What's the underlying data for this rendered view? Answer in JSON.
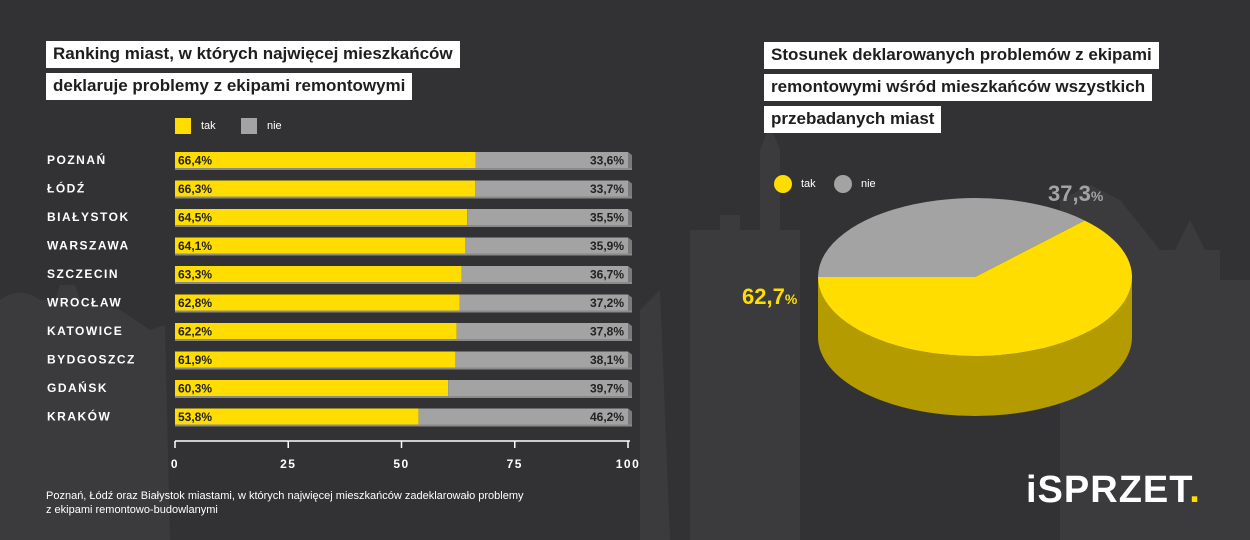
{
  "colors": {
    "yes": "#ffdd00",
    "no": "#a3a3a3",
    "pie_yes_side": "#b39b00",
    "pie_no_side": "#7a7a7a",
    "background": "#323234"
  },
  "left_title": {
    "line1": "Ranking miast, w których najwięcej mieszkańców",
    "line2": "deklaruje problemy z ekipami remontowymi"
  },
  "right_title": {
    "line1": "Stosunek deklarowanych problemów z ekipami",
    "line2": "remontowymi wśród mieszkańców wszystkich",
    "line3": "przebadanych miast"
  },
  "legend": {
    "yes": "tak",
    "no": "nie"
  },
  "note": {
    "line1": "Poznań, Łódź oraz Białystok miastami, w których najwięcej mieszkańców zadeklarowało problemy",
    "line2": "z ekipami remontowo-budowlanymi"
  },
  "logo": {
    "main": "iSPRZET",
    "dot": "."
  },
  "chart_data": [
    {
      "type": "bar",
      "orientation": "horizontal",
      "stacked": true,
      "title": "Ranking miast, w których najwięcej mieszkańców deklaruje problemy z ekipami remontowymi",
      "categories": [
        "POZNAŃ",
        "ŁÓDŹ",
        "BIAŁYSTOK",
        "WARSZAWA",
        "SZCZECIN",
        "WROCŁAW",
        "KATOWICE",
        "BYDGOSZCZ",
        "GDAŃSK",
        "KRAKÓW"
      ],
      "series": [
        {
          "name": "tak",
          "values": [
            66.4,
            66.3,
            64.5,
            64.1,
            63.3,
            62.8,
            62.2,
            61.9,
            60.3,
            53.8
          ],
          "labels": [
            "66,4%",
            "66,3%",
            "64,5%",
            "64,1%",
            "63,3%",
            "62,8%",
            "62,2%",
            "61,9%",
            "60,3%",
            "53,8%"
          ]
        },
        {
          "name": "nie",
          "values": [
            33.6,
            33.7,
            35.5,
            35.9,
            36.7,
            37.2,
            37.8,
            38.1,
            39.7,
            46.2
          ],
          "labels": [
            "33,6%",
            "33,7%",
            "35,5%",
            "35,9%",
            "36,7%",
            "37,2%",
            "37,8%",
            "38,1%",
            "39,7%",
            "46,2%"
          ]
        }
      ],
      "xlim": [
        0,
        100
      ],
      "xticks": [
        0,
        25,
        50,
        75,
        100
      ],
      "xtick_labels": [
        "0",
        "25",
        "50",
        "75",
        "100"
      ],
      "legend_position": "top"
    },
    {
      "type": "pie",
      "style": "3d",
      "title": "Stosunek deklarowanych problemów z ekipami remontowymi wśród mieszkańców wszystkich przebadanych miast",
      "slices": [
        {
          "name": "tak",
          "value": 62.7,
          "label_main": "62,7",
          "label_unit": "%"
        },
        {
          "name": "nie",
          "value": 37.3,
          "label_main": "37,3",
          "label_unit": "%"
        }
      ],
      "legend_position": "top-left"
    }
  ]
}
